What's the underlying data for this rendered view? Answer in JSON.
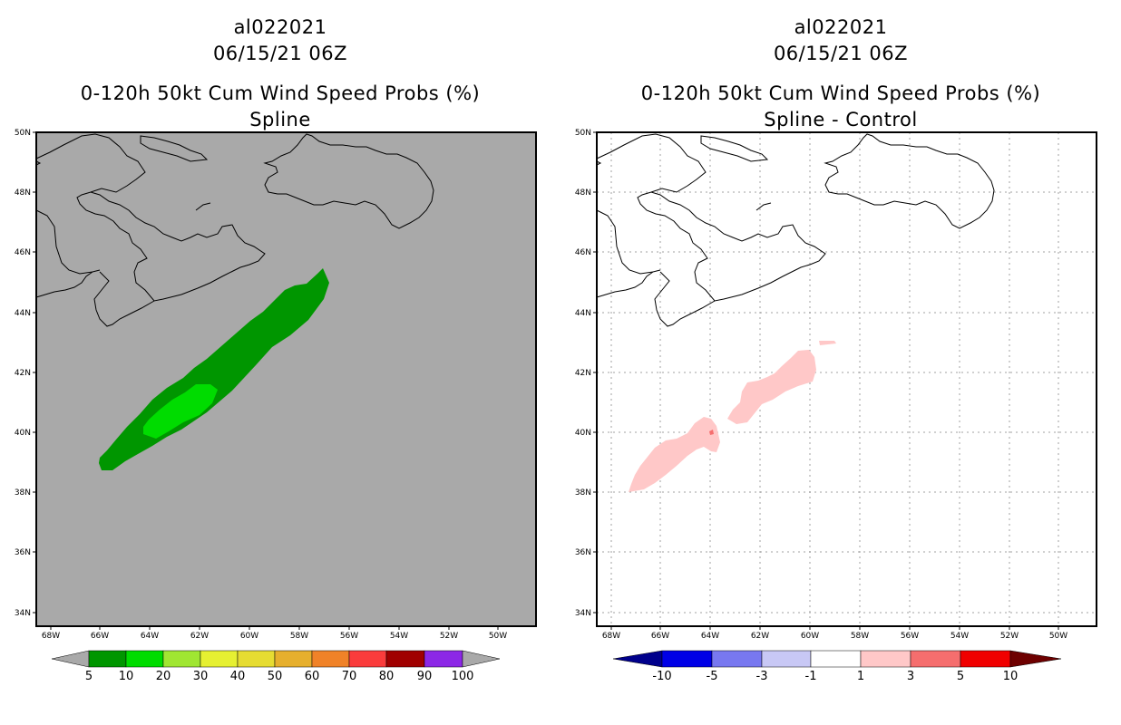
{
  "panels": [
    {
      "id": "spline",
      "title": {
        "storm_id": "al022021",
        "datetime": "06/15/21 06Z",
        "product": "0-120h 50kt Cum Wind Speed Probs (%)",
        "subtitle": "Spline"
      },
      "background_color": "#a9a9a9",
      "colorbar": {
        "labels": [
          "5",
          "10",
          "20",
          "30",
          "40",
          "50",
          "60",
          "70",
          "80",
          "90",
          "100"
        ],
        "colors": [
          "#009600",
          "#00dc00",
          "#a0e632",
          "#e6f032",
          "#e6dc32",
          "#e6af2d",
          "#f08228",
          "#fa3c3c",
          "#a00000",
          "#8c28e6"
        ],
        "end_color": "#a9a9a9"
      }
    },
    {
      "id": "spline-minus-control",
      "title": {
        "storm_id": "al022021",
        "datetime": "06/15/21 06Z",
        "product": "0-120h 50kt Cum Wind Speed Probs (%)",
        "subtitle": "Spline - Control"
      },
      "background_color": "#ffffff",
      "colorbar": {
        "labels": [
          "-10",
          "-5",
          "-3",
          "-1",
          "1",
          "3",
          "5",
          "10"
        ],
        "colors": [
          "#0000e6",
          "#7878f0",
          "#c8c8f5",
          "#ffffff",
          "#ffc8c8",
          "#f56e6e",
          "#f00000"
        ],
        "left_end_color": "#00008c",
        "right_end_color": "#6e0000"
      }
    }
  ],
  "axes": {
    "lat_labels": [
      "50N",
      "48N",
      "46N",
      "44N",
      "42N",
      "40N",
      "38N",
      "36N",
      "34N"
    ],
    "lon_labels": [
      "68W",
      "66W",
      "64W",
      "62W",
      "60W",
      "58W",
      "56W",
      "54W",
      "52W",
      "50W"
    ]
  },
  "icons": {
    "coastline": "coastline-icon"
  }
}
